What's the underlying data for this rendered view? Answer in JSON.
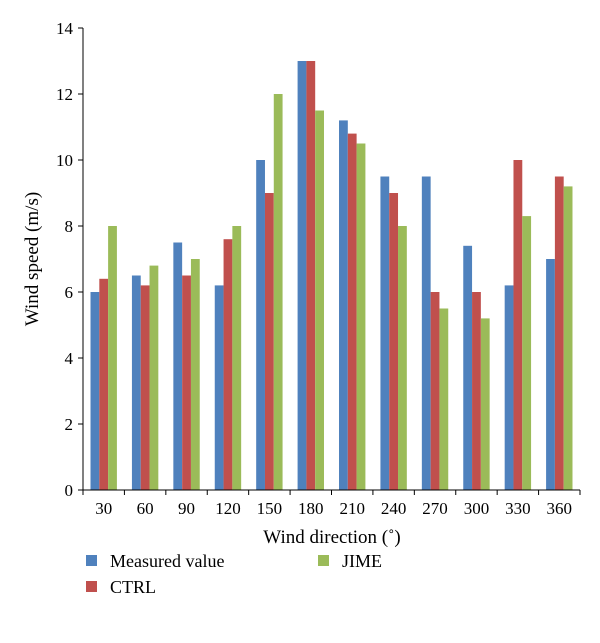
{
  "chart_data": {
    "type": "bar",
    "title": "",
    "xlabel": "Wind direction (˚)",
    "ylabel": "Wind speed (m/s)",
    "ylim": [
      0,
      14
    ],
    "yticks": [
      0,
      2,
      4,
      6,
      8,
      10,
      12,
      14
    ],
    "categories": [
      "30",
      "60",
      "90",
      "120",
      "150",
      "180",
      "210",
      "240",
      "270",
      "300",
      "330",
      "360"
    ],
    "series": [
      {
        "name": "Measured value",
        "color": "#4f81bd",
        "values": [
          6.0,
          6.5,
          7.5,
          6.2,
          10.0,
          13.0,
          11.2,
          9.5,
          9.5,
          7.4,
          6.2,
          7.0
        ]
      },
      {
        "name": "CTRL",
        "color": "#c0504d",
        "values": [
          6.4,
          6.2,
          6.5,
          7.6,
          9.0,
          13.0,
          10.8,
          9.0,
          6.0,
          6.0,
          10.0,
          9.5
        ]
      },
      {
        "name": "JIME",
        "color": "#9bbb59",
        "values": [
          8.0,
          6.8,
          7.0,
          8.0,
          12.0,
          11.5,
          10.5,
          8.0,
          5.5,
          5.2,
          8.3,
          9.2
        ]
      }
    ],
    "grid": false,
    "legend_position": "bottom"
  }
}
